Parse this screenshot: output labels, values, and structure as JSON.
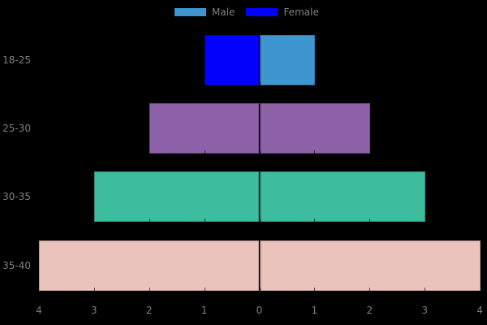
{
  "legend": {
    "male_label": "Male",
    "female_label": "Female"
  },
  "colors": {
    "background": "#000000",
    "male": "#3e95d0",
    "female": "#0202fc",
    "label_text": "#7f7f7f"
  },
  "chart_data": {
    "type": "bar",
    "subtype": "population-pyramid",
    "orientation": "horizontal",
    "title": "",
    "xlabel": "",
    "ylabel": "",
    "categories": [
      "18-25",
      "25-30",
      "30-35",
      "35-40"
    ],
    "series": [
      {
        "name": "Male",
        "side": "right",
        "values": [
          1,
          2,
          3,
          4
        ]
      },
      {
        "name": "Female",
        "side": "left",
        "values": [
          1,
          2,
          3,
          4
        ]
      }
    ],
    "row_colors": [
      {
        "left": "#0202fc",
        "right": "#3e95d0"
      },
      {
        "left": "#8e62a8",
        "right": "#8e62a8"
      },
      {
        "left": "#3dbc9e",
        "right": "#3dbc9e"
      },
      {
        "left": "#eac3bd",
        "right": "#eac3bd"
      }
    ],
    "x_tick_labels": [
      "4",
      "3",
      "2",
      "1",
      "0",
      "1",
      "2",
      "3",
      "4"
    ],
    "xlim": [
      -4,
      4
    ],
    "grid": false,
    "legend_position": "top-center",
    "legend_entries": [
      "Male",
      "Female"
    ]
  }
}
